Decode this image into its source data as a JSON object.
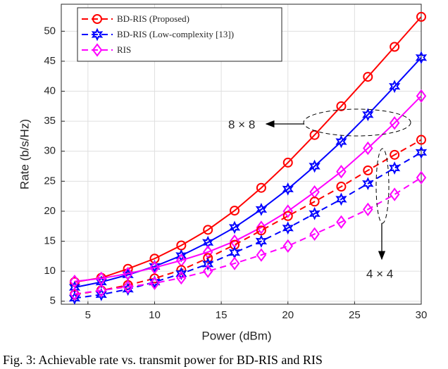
{
  "chart_data": {
    "type": "line",
    "x_label": "Power (dBm)",
    "y_label": "Rate (b/s/Hz)",
    "caption": "Fig. 3: Achievable rate vs. transmit power for BD-RIS and RIS",
    "x": [
      4,
      6,
      8,
      10,
      12,
      14,
      16,
      18,
      20,
      22,
      24,
      26,
      28,
      30
    ],
    "xlim": [
      3,
      30
    ],
    "ylim": [
      4.5,
      54.5
    ],
    "xticks": [
      5,
      10,
      15,
      20,
      25,
      30
    ],
    "yticks": [
      5,
      10,
      15,
      20,
      25,
      30,
      35,
      40,
      45,
      50
    ],
    "grid": true,
    "legend": "upper left",
    "groups": [
      {
        "label": "8 × 8",
        "dash": "solid",
        "series": [
          {
            "name": "BD-RIS (Proposed)",
            "color": "#ff0000",
            "marker": "circle",
            "values": [
              8.2,
              8.9,
              10.4,
              12.1,
              14.3,
              16.9,
              20.1,
              23.9,
              28.1,
              32.7,
              37.5,
              42.4,
              47.4,
              52.4
            ]
          },
          {
            "name": "BD-RIS (Low-complexity [13])",
            "color": "#0000ff",
            "marker": "hexagram",
            "values": [
              7.3,
              8.2,
              9.4,
              10.8,
              12.6,
              14.8,
              17.3,
              20.3,
              23.7,
              27.5,
              31.6,
              36.1,
              40.8,
              45.6
            ]
          },
          {
            "name": "RIS",
            "color": "#ff00ff",
            "marker": "diamond",
            "values": [
              8.3,
              8.8,
              9.6,
              10.6,
              11.8,
              13.2,
              15.0,
              17.3,
              20.0,
              23.2,
              26.6,
              30.5,
              34.7,
              39.2
            ]
          }
        ]
      },
      {
        "label": "4 × 4",
        "dash": "dashed",
        "series": [
          {
            "name": "BD-RIS (Proposed)",
            "color": "#ff0000",
            "marker": "circle",
            "values": [
              6.1,
              6.8,
              7.7,
              8.8,
              10.2,
              12.2,
              14.4,
              16.8,
              19.2,
              21.6,
              24.1,
              26.8,
              29.4,
              31.9
            ]
          },
          {
            "name": "BD-RIS (Low-complexity [13])",
            "color": "#0000ff",
            "marker": "hexagram",
            "values": [
              5.5,
              6.1,
              7.0,
              8.2,
              9.6,
              11.2,
              13.1,
              15.0,
              17.2,
              19.6,
              22.0,
              24.6,
              27.2,
              29.8
            ]
          },
          {
            "name": "RIS",
            "color": "#ff00ff",
            "marker": "diamond",
            "values": [
              6.2,
              6.8,
              7.4,
              8.0,
              8.9,
              10.0,
              11.3,
              12.7,
              14.2,
              16.2,
              18.2,
              20.3,
              22.8,
              25.6
            ]
          }
        ]
      }
    ]
  }
}
